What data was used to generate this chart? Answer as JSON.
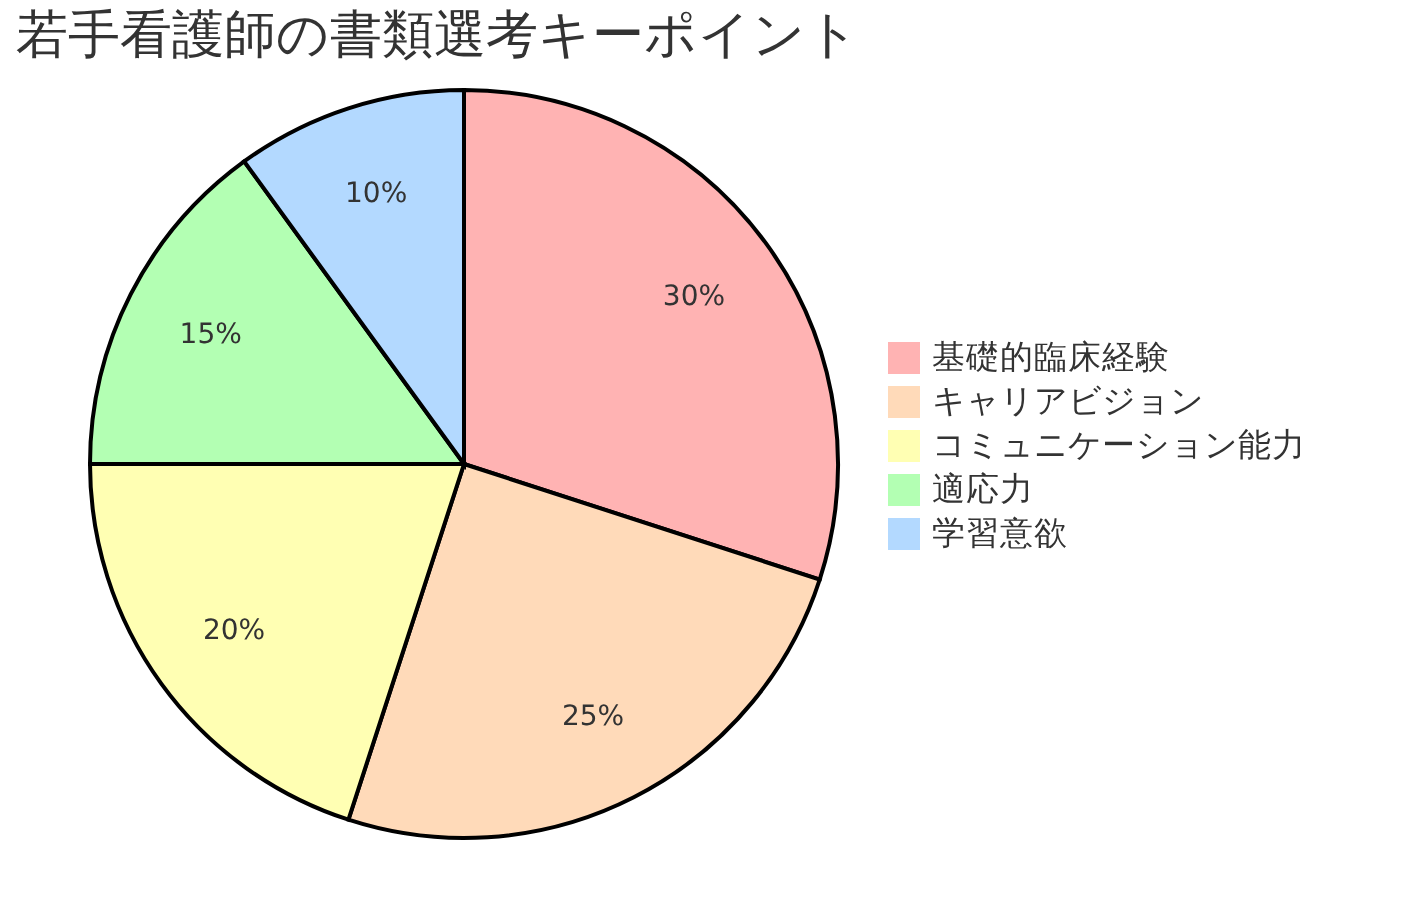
{
  "chart_data": {
    "type": "pie",
    "title": "若手看護師の書類選考キーポイント",
    "categories": [
      "基礎的臨床経験",
      "キャリアビジョン",
      "コミュニケーション能力",
      "適応力",
      "学習意欲"
    ],
    "values": [
      30,
      25,
      20,
      15,
      10
    ],
    "colors": [
      "#ffb3b3",
      "#ffdab9",
      "#ffffb3",
      "#b3ffb3",
      "#b3d9ff"
    ],
    "value_labels": [
      "30%",
      "25%",
      "20%",
      "15%",
      "10%"
    ],
    "legend": "right"
  }
}
